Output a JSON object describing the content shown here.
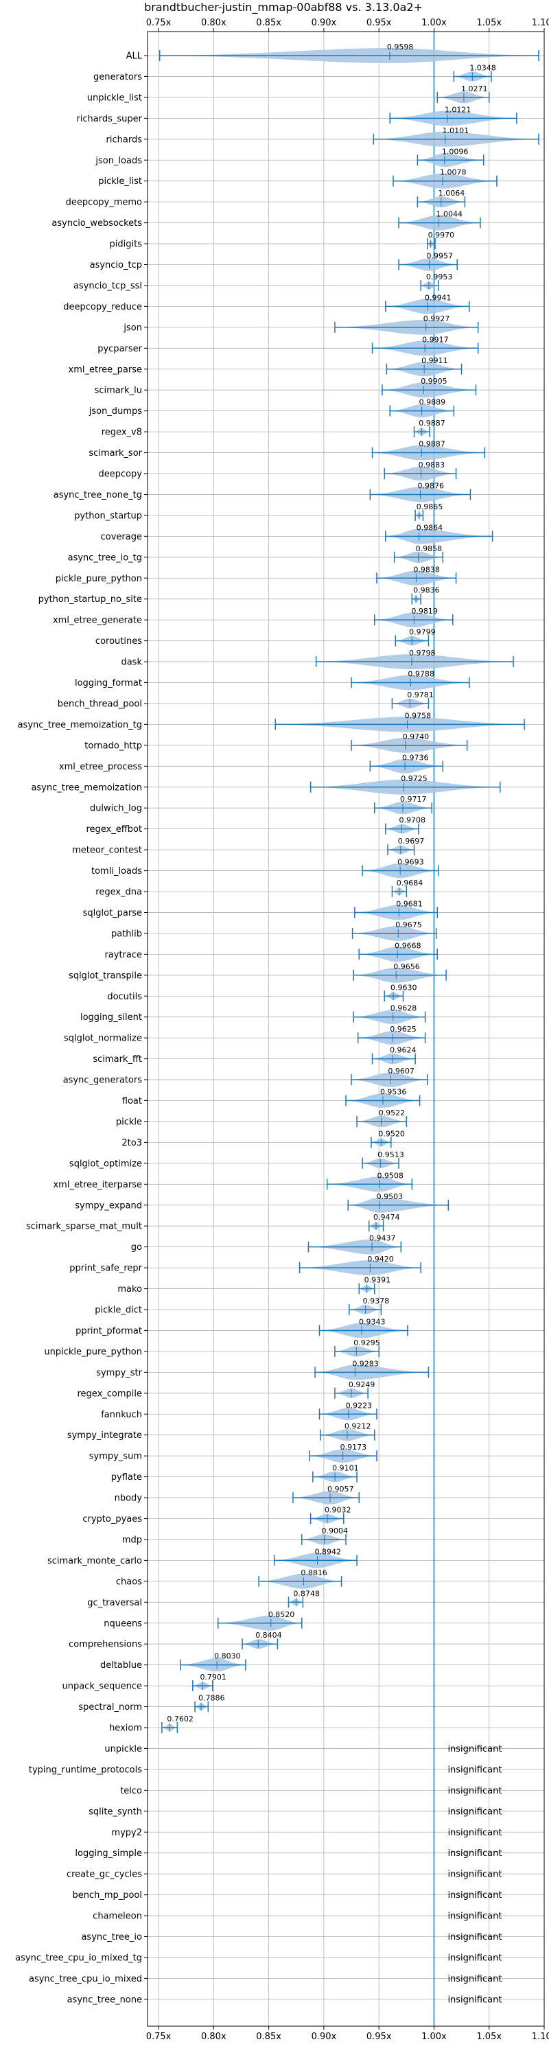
{
  "chart_data": {
    "type": "violin",
    "title": "brandtbucher-justin_mmap-00abf88 vs. 3.13.0a2+",
    "xlim": [
      0.74,
      1.1
    ],
    "xticks": [
      0.75,
      0.8,
      0.85,
      0.9,
      0.95,
      1.0,
      1.05,
      1.1
    ],
    "xtick_labels": [
      "0.75x",
      "0.80x",
      "0.85x",
      "0.90x",
      "0.95x",
      "1.00x",
      "1.05x",
      "1.10x"
    ],
    "grid": true,
    "reference_line": 1.0,
    "insignificant_label": "insignificant",
    "series": [
      {
        "name": "ALL",
        "value": 0.9598,
        "min": 0.751,
        "max": 1.095,
        "label": "0.9598"
      },
      {
        "name": "generators",
        "value": 1.0348,
        "min": 1.018,
        "max": 1.052,
        "label": "1.0348"
      },
      {
        "name": "unpickle_list",
        "value": 1.0271,
        "min": 1.003,
        "max": 1.05,
        "label": "1.0271"
      },
      {
        "name": "richards_super",
        "value": 1.0121,
        "min": 0.96,
        "max": 1.075,
        "label": "1.0121"
      },
      {
        "name": "richards",
        "value": 1.0101,
        "min": 0.945,
        "max": 1.095,
        "label": "1.0101"
      },
      {
        "name": "json_loads",
        "value": 1.0096,
        "min": 0.985,
        "max": 1.045,
        "label": "1.0096"
      },
      {
        "name": "pickle_list",
        "value": 1.0078,
        "min": 0.963,
        "max": 1.057,
        "label": "1.0078"
      },
      {
        "name": "deepcopy_memo",
        "value": 1.0064,
        "min": 0.985,
        "max": 1.028,
        "label": "1.0064"
      },
      {
        "name": "asyncio_websockets",
        "value": 1.0044,
        "min": 0.968,
        "max": 1.042,
        "label": "1.0044"
      },
      {
        "name": "pidigits",
        "value": 0.997,
        "min": 0.994,
        "max": 1.001,
        "label": "0.9970"
      },
      {
        "name": "asyncio_tcp",
        "value": 0.9957,
        "min": 0.968,
        "max": 1.021,
        "label": "0.9957"
      },
      {
        "name": "asyncio_tcp_ssl",
        "value": 0.9953,
        "min": 0.988,
        "max": 1.004,
        "label": "0.9953"
      },
      {
        "name": "deepcopy_reduce",
        "value": 0.9941,
        "min": 0.956,
        "max": 1.032,
        "label": "0.9941"
      },
      {
        "name": "json",
        "value": 0.9927,
        "min": 0.91,
        "max": 1.04,
        "label": "0.9927"
      },
      {
        "name": "pycparser",
        "value": 0.9917,
        "min": 0.944,
        "max": 1.04,
        "label": "0.9917"
      },
      {
        "name": "xml_etree_parse",
        "value": 0.9911,
        "min": 0.957,
        "max": 1.025,
        "label": "0.9911"
      },
      {
        "name": "scimark_lu",
        "value": 0.9905,
        "min": 0.953,
        "max": 1.038,
        "label": "0.9905"
      },
      {
        "name": "json_dumps",
        "value": 0.9889,
        "min": 0.96,
        "max": 1.018,
        "label": "0.9889"
      },
      {
        "name": "regex_v8",
        "value": 0.9887,
        "min": 0.982,
        "max": 0.996,
        "label": "0.9887"
      },
      {
        "name": "scimark_sor",
        "value": 0.9887,
        "min": 0.944,
        "max": 1.046,
        "label": "0.9887"
      },
      {
        "name": "deepcopy",
        "value": 0.9883,
        "min": 0.955,
        "max": 1.02,
        "label": "0.9883"
      },
      {
        "name": "async_tree_none_tg",
        "value": 0.9876,
        "min": 0.942,
        "max": 1.033,
        "label": "0.9876"
      },
      {
        "name": "python_startup",
        "value": 0.9865,
        "min": 0.983,
        "max": 0.99,
        "label": "0.9865"
      },
      {
        "name": "coverage",
        "value": 0.9864,
        "min": 0.956,
        "max": 1.053,
        "label": "0.9864"
      },
      {
        "name": "async_tree_io_tg",
        "value": 0.9858,
        "min": 0.964,
        "max": 1.008,
        "label": "0.9858"
      },
      {
        "name": "pickle_pure_python",
        "value": 0.9838,
        "min": 0.948,
        "max": 1.02,
        "label": "0.9838"
      },
      {
        "name": "python_startup_no_site",
        "value": 0.9836,
        "min": 0.98,
        "max": 0.988,
        "label": "0.9836"
      },
      {
        "name": "xml_etree_generate",
        "value": 0.9819,
        "min": 0.946,
        "max": 1.017,
        "label": "0.9819"
      },
      {
        "name": "coroutines",
        "value": 0.9799,
        "min": 0.965,
        "max": 0.995,
        "label": "0.9799"
      },
      {
        "name": "dask",
        "value": 0.9798,
        "min": 0.893,
        "max": 1.072,
        "label": "0.9798"
      },
      {
        "name": "logging_format",
        "value": 0.9788,
        "min": 0.925,
        "max": 1.032,
        "label": "0.9788"
      },
      {
        "name": "bench_thread_pool",
        "value": 0.9781,
        "min": 0.962,
        "max": 0.995,
        "label": "0.9781"
      },
      {
        "name": "async_tree_memoization_tg",
        "value": 0.9758,
        "min": 0.856,
        "max": 1.082,
        "label": "0.9758"
      },
      {
        "name": "tornado_http",
        "value": 0.974,
        "min": 0.925,
        "max": 1.03,
        "label": "0.9740"
      },
      {
        "name": "xml_etree_process",
        "value": 0.9736,
        "min": 0.942,
        "max": 1.008,
        "label": "0.9736"
      },
      {
        "name": "async_tree_memoization",
        "value": 0.9725,
        "min": 0.888,
        "max": 1.06,
        "label": "0.9725"
      },
      {
        "name": "dulwich_log",
        "value": 0.9717,
        "min": 0.946,
        "max": 0.998,
        "label": "0.9717"
      },
      {
        "name": "regex_effbot",
        "value": 0.9708,
        "min": 0.956,
        "max": 0.986,
        "label": "0.9708"
      },
      {
        "name": "meteor_contest",
        "value": 0.9697,
        "min": 0.958,
        "max": 0.982,
        "label": "0.9697"
      },
      {
        "name": "tomli_loads",
        "value": 0.9693,
        "min": 0.935,
        "max": 1.004,
        "label": "0.9693"
      },
      {
        "name": "regex_dna",
        "value": 0.9684,
        "min": 0.962,
        "max": 0.975,
        "label": "0.9684"
      },
      {
        "name": "sqlglot_parse",
        "value": 0.9681,
        "min": 0.928,
        "max": 1.003,
        "label": "0.9681"
      },
      {
        "name": "pathlib",
        "value": 0.9675,
        "min": 0.926,
        "max": 1.002,
        "label": "0.9675"
      },
      {
        "name": "raytrace",
        "value": 0.9668,
        "min": 0.932,
        "max": 1.003,
        "label": "0.9668"
      },
      {
        "name": "sqlglot_transpile",
        "value": 0.9656,
        "min": 0.927,
        "max": 1.011,
        "label": "0.9656"
      },
      {
        "name": "docutils",
        "value": 0.963,
        "min": 0.955,
        "max": 0.972,
        "label": "0.9630"
      },
      {
        "name": "logging_silent",
        "value": 0.9628,
        "min": 0.927,
        "max": 0.992,
        "label": "0.9628"
      },
      {
        "name": "sqlglot_normalize",
        "value": 0.9625,
        "min": 0.931,
        "max": 0.992,
        "label": "0.9625"
      },
      {
        "name": "scimark_fft",
        "value": 0.9624,
        "min": 0.944,
        "max": 0.983,
        "label": "0.9624"
      },
      {
        "name": "async_generators",
        "value": 0.9607,
        "min": 0.925,
        "max": 0.994,
        "label": "0.9607"
      },
      {
        "name": "float",
        "value": 0.9536,
        "min": 0.92,
        "max": 0.987,
        "label": "0.9536"
      },
      {
        "name": "pickle",
        "value": 0.9522,
        "min": 0.93,
        "max": 0.975,
        "label": "0.9522"
      },
      {
        "name": "2to3",
        "value": 0.952,
        "min": 0.943,
        "max": 0.961,
        "label": "0.9520"
      },
      {
        "name": "sqlglot_optimize",
        "value": 0.9513,
        "min": 0.935,
        "max": 0.968,
        "label": "0.9513"
      },
      {
        "name": "xml_etree_iterparse",
        "value": 0.9508,
        "min": 0.903,
        "max": 0.98,
        "label": "0.9508"
      },
      {
        "name": "sympy_expand",
        "value": 0.9503,
        "min": 0.922,
        "max": 1.013,
        "label": "0.9503"
      },
      {
        "name": "scimark_sparse_mat_mult",
        "value": 0.9474,
        "min": 0.941,
        "max": 0.954,
        "label": "0.9474"
      },
      {
        "name": "go",
        "value": 0.9437,
        "min": 0.886,
        "max": 0.97,
        "label": "0.9437"
      },
      {
        "name": "pprint_safe_repr",
        "value": 0.942,
        "min": 0.878,
        "max": 0.988,
        "label": "0.9420"
      },
      {
        "name": "mako",
        "value": 0.9391,
        "min": 0.932,
        "max": 0.946,
        "label": "0.9391"
      },
      {
        "name": "pickle_dict",
        "value": 0.9378,
        "min": 0.923,
        "max": 0.952,
        "label": "0.9378"
      },
      {
        "name": "pprint_pformat",
        "value": 0.9343,
        "min": 0.896,
        "max": 0.976,
        "label": "0.9343"
      },
      {
        "name": "unpickle_pure_python",
        "value": 0.9295,
        "min": 0.91,
        "max": 0.95,
        "label": "0.9295"
      },
      {
        "name": "sympy_str",
        "value": 0.9283,
        "min": 0.892,
        "max": 0.995,
        "label": "0.9283"
      },
      {
        "name": "regex_compile",
        "value": 0.9249,
        "min": 0.91,
        "max": 0.94,
        "label": "0.9249"
      },
      {
        "name": "fannkuch",
        "value": 0.9223,
        "min": 0.896,
        "max": 0.948,
        "label": "0.9223"
      },
      {
        "name": "sympy_integrate",
        "value": 0.9212,
        "min": 0.897,
        "max": 0.946,
        "label": "0.9212"
      },
      {
        "name": "sympy_sum",
        "value": 0.9173,
        "min": 0.887,
        "max": 0.948,
        "label": "0.9173"
      },
      {
        "name": "pyflate",
        "value": 0.9101,
        "min": 0.89,
        "max": 0.93,
        "label": "0.9101"
      },
      {
        "name": "nbody",
        "value": 0.9057,
        "min": 0.872,
        "max": 0.932,
        "label": "0.9057"
      },
      {
        "name": "crypto_pyaes",
        "value": 0.9032,
        "min": 0.888,
        "max": 0.918,
        "label": "0.9032"
      },
      {
        "name": "mdp",
        "value": 0.9004,
        "min": 0.88,
        "max": 0.92,
        "label": "0.9004"
      },
      {
        "name": "scimark_monte_carlo",
        "value": 0.8942,
        "min": 0.855,
        "max": 0.93,
        "label": "0.8942"
      },
      {
        "name": "chaos",
        "value": 0.8816,
        "min": 0.841,
        "max": 0.916,
        "label": "0.8816"
      },
      {
        "name": "gc_traversal",
        "value": 0.8748,
        "min": 0.868,
        "max": 0.881,
        "label": "0.8748"
      },
      {
        "name": "nqueens",
        "value": 0.852,
        "min": 0.804,
        "max": 0.88,
        "label": "0.8520"
      },
      {
        "name": "comprehensions",
        "value": 0.8404,
        "min": 0.826,
        "max": 0.858,
        "label": "0.8404"
      },
      {
        "name": "deltablue",
        "value": 0.803,
        "min": 0.77,
        "max": 0.829,
        "label": "0.8030"
      },
      {
        "name": "unpack_sequence",
        "value": 0.7901,
        "min": 0.781,
        "max": 0.799,
        "label": "0.7901"
      },
      {
        "name": "spectral_norm",
        "value": 0.7886,
        "min": 0.783,
        "max": 0.795,
        "label": "0.7886"
      },
      {
        "name": "hexiom",
        "value": 0.7602,
        "min": 0.753,
        "max": 0.767,
        "label": "0.7602"
      },
      {
        "name": "unpickle",
        "insignificant": true
      },
      {
        "name": "typing_runtime_protocols",
        "insignificant": true
      },
      {
        "name": "telco",
        "insignificant": true
      },
      {
        "name": "sqlite_synth",
        "insignificant": true
      },
      {
        "name": "mypy2",
        "insignificant": true
      },
      {
        "name": "logging_simple",
        "insignificant": true
      },
      {
        "name": "create_gc_cycles",
        "insignificant": true
      },
      {
        "name": "bench_mp_pool",
        "insignificant": true
      },
      {
        "name": "chameleon",
        "insignificant": true
      },
      {
        "name": "async_tree_io",
        "insignificant": true
      },
      {
        "name": "async_tree_cpu_io_mixed_tg",
        "insignificant": true
      },
      {
        "name": "async_tree_cpu_io_mixed",
        "insignificant": true
      },
      {
        "name": "async_tree_none",
        "insignificant": true
      }
    ]
  },
  "colors": {
    "violin_fill": "#aac8e6",
    "line": "#1f77b4",
    "grid": "#b0b0b0",
    "text": "#000000"
  }
}
